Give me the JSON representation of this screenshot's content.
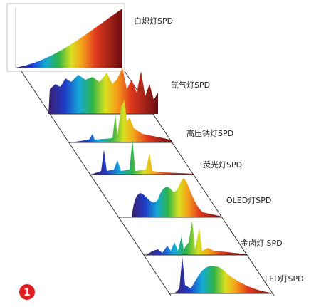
{
  "labels": [
    "白炽灯SPD",
    "氙气灯SPD",
    "高压钠灯SPD",
    "荧光灯SPD",
    "OLED灯SPD",
    "金卤灯 SPD",
    "LED灯SPD"
  ],
  "badge": "1"
}
